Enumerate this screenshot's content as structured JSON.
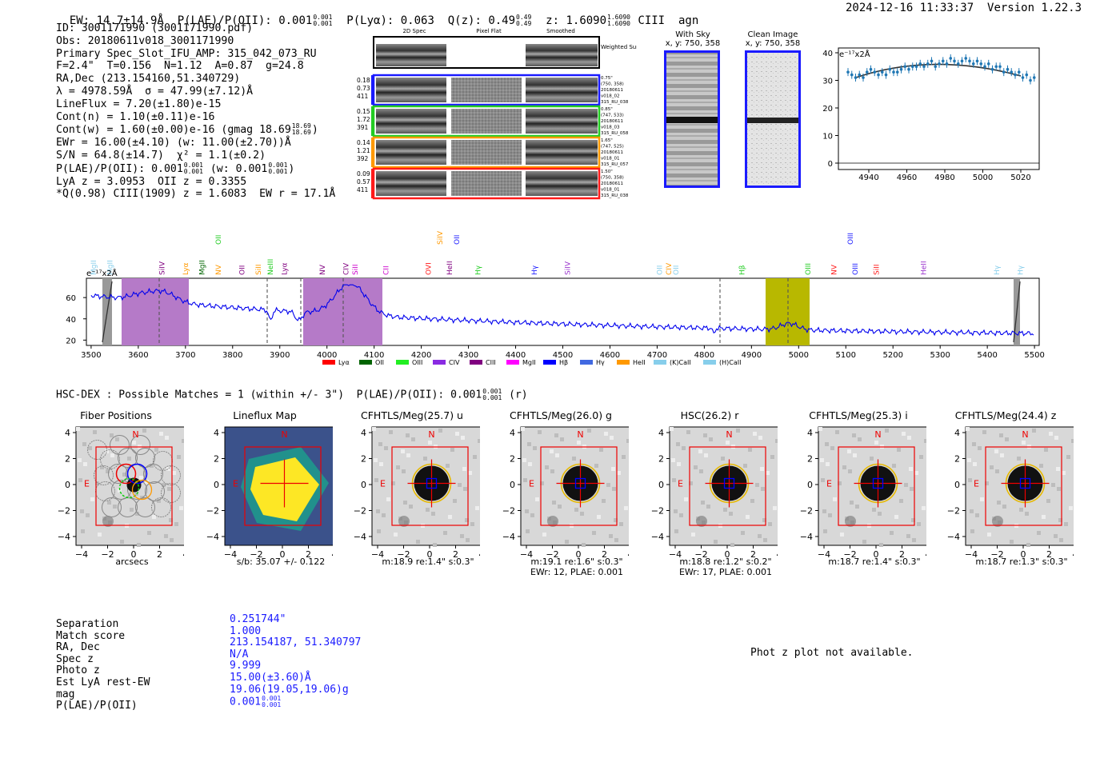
{
  "header": {
    "ew": "EW: 14.7±14.9Å",
    "plae_label": "P(LAE)/P(OII):",
    "plae_val": "0.001",
    "plae_hi": "0.001",
    "plae_lo": "0.001",
    "plya": "P(Lyα): 0.063",
    "qz_label": "Q(z):",
    "qz_val": "0.49",
    "qz_hi": "0.49",
    "qz_lo": "0.49",
    "z_label": "z:",
    "z_val": "1.6090",
    "z_hi": "1.6090",
    "z_lo": "1.6090",
    "z_tags": "CIII  agn",
    "timestamp": "2024-12-16 11:33:37",
    "version": "Version 1.22.3"
  },
  "info": {
    "id": "ID: 3001171990 (3001171990.pdf)",
    "obs": "Obs: 20180611v018_3001171990",
    "primary": "Primary Spec_Slot_IFU_AMP: 315_042_073_RU",
    "fwhm": "F=2.4\"  T=0.156  N=1.12  A=0.87  g=24.8",
    "radec": "RA,Dec (213.154160,51.340729)",
    "lambda": "λ = 4978.59Å  σ = 47.99(±7.12)Å",
    "lineflux": "LineFlux = 7.20(±1.80)e-15",
    "contn": "Cont(n) = 1.10(±0.11)e-16",
    "contw": "Cont(w) = 1.60(±0.00)e-16 (gmag 18.69",
    "contw_hi": "18.69",
    "contw_lo": "18.69",
    "ewr": "EWr = 16.00(±4.10) (w: 11.00(±2.70))Å",
    "sn": "S/N = 64.8(±14.7)  χ² = 1.1(±0.2)",
    "plae": "P(LAE)/P(OII): 0.001",
    "plae_hi": "0.001",
    "plae_lo": "0.001",
    "plae_w": "(w: 0.001",
    "plae_w_hi": "0.001",
    "plae_w_lo": "0.001",
    "lya": "LyA z = 3.0953  OII z = 0.3355",
    "ciii": "*Q(0.98) CIII(1909) z = 1.6083  EW r = 17.1Å"
  },
  "cutouts": {
    "headers": [
      "2D Spec",
      "Pixel Flat",
      "Smoothed"
    ],
    "weighted_sum": "Weighted Sum",
    "rows": [
      {
        "vals": [
          "0.18",
          "0.73",
          "411"
        ],
        "color": "#1a1aff",
        "meta": [
          "0.75\"",
          "(750, 358)",
          "20180611",
          "v018_02",
          "315_RU_038"
        ]
      },
      {
        "vals": [
          "0.15",
          "1.72",
          "391"
        ],
        "color": "#22cc22",
        "meta": [
          "0.85\"",
          "(747, 533)",
          "20180611",
          "v018_03",
          "315_RU_058"
        ]
      },
      {
        "vals": [
          "0.14",
          "1.21",
          "392"
        ],
        "color": "#ff9900",
        "meta": [
          "1.65\"",
          "(747, 525)",
          "20180611",
          "v018_01",
          "315_RU_057"
        ]
      },
      {
        "vals": [
          "0.09",
          "0.57",
          "411"
        ],
        "color": "#ff1a1a",
        "meta": [
          "1.50\"",
          "(750, 358)",
          "20180611",
          "v018_01",
          "315_RU_038"
        ]
      }
    ],
    "with_sky": "With Sky",
    "with_sky_xy": "x, y: 750, 358",
    "clean": "Clean Image",
    "clean_xy": "x, y: 750, 358"
  },
  "zoom_chart": {
    "ylabel": "e⁻¹⁷x2Å",
    "yticks": [
      "0",
      "10",
      "20",
      "30",
      "40"
    ],
    "xticks": [
      "4940",
      "4960",
      "4980",
      "5000",
      "5020"
    ]
  },
  "spectrum": {
    "ylabel": "e⁻¹⁷x2Å",
    "yticks": [
      "20",
      "40",
      "60"
    ],
    "xticks": [
      "3500",
      "3600",
      "3700",
      "3800",
      "3900",
      "4000",
      "4100",
      "4200",
      "4300",
      "4400",
      "4500",
      "4600",
      "4700",
      "4800",
      "4900",
      "5000",
      "5100",
      "5200",
      "5300",
      "5400",
      "5500"
    ],
    "lines_top": [
      {
        "label": "OII",
        "color": "#22cc22"
      },
      {
        "label": "SiIV",
        "color": "#ff9900"
      },
      {
        "label": "OII",
        "color": "#1a1aff"
      },
      {
        "label": "OIII",
        "color": "#1a1aff"
      }
    ],
    "lines": [
      {
        "label": "MgII",
        "color": "#87ceeb"
      },
      {
        "label": "MgII",
        "color": "#87ceeb"
      },
      {
        "label": "SiIV",
        "color": "#800080"
      },
      {
        "label": "Lyα",
        "color": "#ff9900"
      },
      {
        "label": "MgII",
        "color": "#006400"
      },
      {
        "label": "NV",
        "color": "#ff9900"
      },
      {
        "label": "OII",
        "color": "#800080"
      },
      {
        "label": "SiII",
        "color": "#ff9900"
      },
      {
        "label": "NeIII",
        "color": "#22cc22"
      },
      {
        "label": "Lyα",
        "color": "#800080"
      },
      {
        "label": "NV",
        "color": "#800080"
      },
      {
        "label": "CIV",
        "color": "#800080"
      },
      {
        "label": "SiII",
        "color": "#cc00cc"
      },
      {
        "label": "CII",
        "color": "#cc00cc"
      },
      {
        "label": "OVI",
        "color": "#ff1a1a"
      },
      {
        "label": "HeII",
        "color": "#800080"
      },
      {
        "label": "Hγ",
        "color": "#22cc22"
      },
      {
        "label": "Hγ",
        "color": "#1a1aff"
      },
      {
        "label": "SiIV",
        "color": "#9932cc"
      },
      {
        "label": "OII",
        "color": "#87ceeb"
      },
      {
        "label": "CIV",
        "color": "#ff9900"
      },
      {
        "label": "OII",
        "color": "#87ceeb"
      },
      {
        "label": "Hβ",
        "color": "#22cc22"
      },
      {
        "label": "OIII",
        "color": "#22cc22"
      },
      {
        "label": "NV",
        "color": "#ff1a1a"
      },
      {
        "label": "OIII",
        "color": "#1a1aff"
      },
      {
        "label": "SiII",
        "color": "#ff1a1a"
      },
      {
        "label": "HeII",
        "color": "#9932cc"
      },
      {
        "label": "Hγ",
        "color": "#87ceeb"
      },
      {
        "label": "Hγ",
        "color": "#87ceeb"
      }
    ],
    "legend": [
      {
        "label": "Lyα",
        "color": "#ff0000"
      },
      {
        "label": "OII",
        "color": "#006400"
      },
      {
        "label": "OIII",
        "color": "#22ee22"
      },
      {
        "label": "CIV",
        "color": "#8a2be2"
      },
      {
        "label": "CIII",
        "color": "#800080"
      },
      {
        "label": "MgII",
        "color": "#ff00ff"
      },
      {
        "label": "Hβ",
        "color": "#0000ff"
      },
      {
        "label": "Hγ",
        "color": "#4169e1"
      },
      {
        "label": "HeII",
        "color": "#ff9900"
      },
      {
        "label": "(K)CaII",
        "color": "#87ceeb"
      },
      {
        "label": "(H)CaII",
        "color": "#87ceeb"
      }
    ]
  },
  "hsc": {
    "title": "HSC-DEX : Possible Matches = 1 (within +/- 3\")  P(LAE)/P(OII): 0.001",
    "plae_hi": "0.001",
    "plae_lo": "0.001",
    "suffix": "(r)"
  },
  "stamps": [
    {
      "title": "Fiber Positions",
      "caption1": "arcsecs",
      "caption2": ""
    },
    {
      "title": "Lineflux Map",
      "caption1": "s/b: 35.07 +/- 0.122",
      "caption2": ""
    },
    {
      "title": "CFHTLS/Meg(25.7) u",
      "caption1": "m:18.9  re:1.4\"  s:0.3\"",
      "caption2": ""
    },
    {
      "title": "CFHTLS/Meg(26.0) g",
      "caption1": "m:19.1  re:1.6\"  s:0.3\"",
      "caption2": "EWr: 12, PLAE: 0.001"
    },
    {
      "title": "HSC(26.2) r",
      "caption1": "m:18.8  re:1.2\"  s:0.2\"",
      "caption2": "EWr: 17, PLAE: 0.001"
    },
    {
      "title": "CFHTLS/Meg(25.3) i",
      "caption1": "m:18.7  re:1.4\"  s:0.3\"",
      "caption2": ""
    },
    {
      "title": "CFHTLS/Meg(24.4) z",
      "caption1": "m:18.7  re:1.3\"  s:0.3\"",
      "caption2": ""
    }
  ],
  "stamp_axis": {
    "yticks": [
      "4",
      "2",
      "0",
      "−2",
      "−4"
    ],
    "xticks": [
      "−4",
      "−2",
      "0",
      "2",
      "4"
    ],
    "north": "N",
    "east": "E"
  },
  "match_table": {
    "labels": [
      "Separation",
      "Match score",
      "RA, Dec",
      "Spec z",
      "Photo z",
      "Est LyA rest-EW",
      "mag",
      "P(LAE)/P(OII)"
    ],
    "values": [
      "0.251744\"",
      "1.000",
      "213.154187, 51.340797",
      "N/A",
      "9.999",
      "15.00(±3.60)Å",
      "19.06(19.05,19.06)g",
      "0.001"
    ],
    "plae_hi": "0.001",
    "plae_lo": "0.001"
  },
  "photz_msg": "Phot z plot not available.",
  "colors": {
    "spectrum": "#0000ee",
    "purple_band": "#b57ac8",
    "olive_band": "#b8b800",
    "red": "#ff0000",
    "blue": "#0000ff",
    "yellow": "#ffd700"
  }
}
